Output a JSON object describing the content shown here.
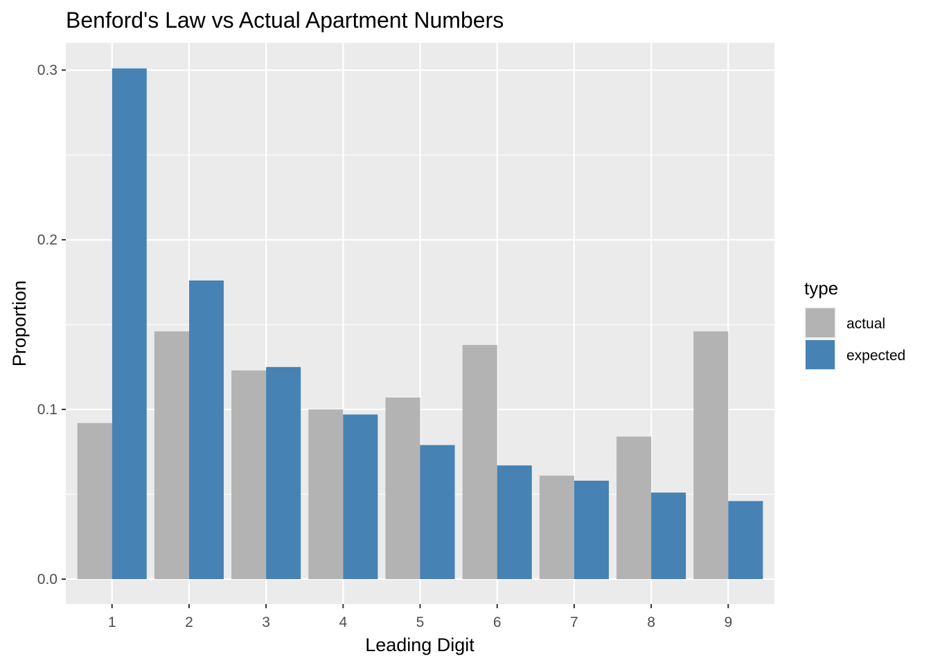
{
  "chart_data": {
    "type": "bar",
    "title": "Benford's Law vs Actual Apartment Numbers",
    "xlabel": "Leading Digit",
    "ylabel": "Proportion",
    "categories": [
      "1",
      "2",
      "3",
      "4",
      "5",
      "6",
      "7",
      "8",
      "9"
    ],
    "series": [
      {
        "name": "actual",
        "color": "#b3b3b3",
        "values": [
          0.092,
          0.146,
          0.123,
          0.1,
          0.107,
          0.138,
          0.061,
          0.084,
          0.146
        ]
      },
      {
        "name": "expected",
        "color": "#4682b4",
        "values": [
          0.301,
          0.176,
          0.125,
          0.097,
          0.079,
          0.067,
          0.058,
          0.051,
          0.046
        ]
      }
    ],
    "ylim": [
      -0.0147,
      0.316
    ],
    "yticks": [
      "0.0",
      "0.1",
      "0.2",
      "0.3"
    ],
    "ytick_values": [
      0,
      0.1,
      0.2,
      0.3
    ],
    "grid": true,
    "legend": {
      "title": "type",
      "position": "right"
    },
    "background": "#ebebeb",
    "grid_color": "#ffffff"
  }
}
